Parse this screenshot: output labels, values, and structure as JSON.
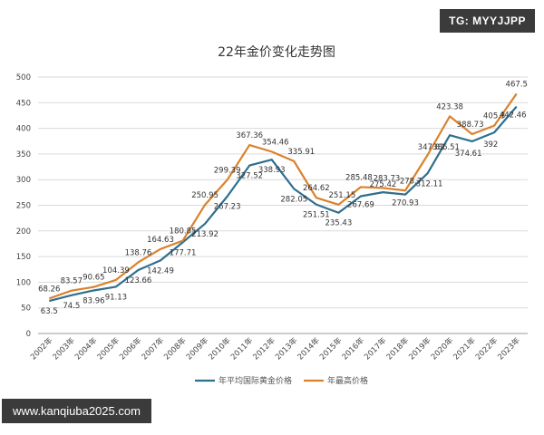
{
  "watermark_top": "TG: MYYJJPP",
  "watermark_bottom": "www.kanqiuba2025.com",
  "chart_data": {
    "type": "line",
    "title": "22年金价变化走势图",
    "xlabel": "",
    "ylabel": "",
    "ylim": [
      0,
      500
    ],
    "yticks": [
      0,
      50,
      100,
      150,
      200,
      250,
      300,
      350,
      400,
      450,
      500
    ],
    "grid": true,
    "legend_position": "bottom-center",
    "categories": [
      "2002年",
      "2003年",
      "2004年",
      "2005年",
      "2006年",
      "2007年",
      "2008年",
      "2009年",
      "2010年",
      "2011年",
      "2012年",
      "2013年",
      "2014年",
      "2015年",
      "2016年",
      "2017年",
      "2018年",
      "2019年",
      "2020年",
      "2021年",
      "2022年",
      "2023年"
    ],
    "series": [
      {
        "name": "年平均国际黄金价格",
        "color": "#2e6f8e",
        "values": [
          63.5,
          74.5,
          83.96,
          91.13,
          123.66,
          142.49,
          177.71,
          213.92,
          267.23,
          327.52,
          338.93,
          282.05,
          251.51,
          235.43,
          267.69,
          275.42,
          270.93,
          312.11,
          386.51,
          374.61,
          392,
          442.46
        ]
      },
      {
        "name": "年最高价格",
        "color": "#d9822b",
        "values": [
          68.26,
          83.57,
          90.65,
          104.39,
          138.76,
          164.63,
          180.85,
          250.95,
          299.39,
          367.36,
          354.46,
          335.91,
          264.62,
          251.15,
          285.48,
          283.73,
          278.7,
          347.82,
          423.38,
          388.73,
          405.3,
          467.5
        ]
      }
    ]
  }
}
